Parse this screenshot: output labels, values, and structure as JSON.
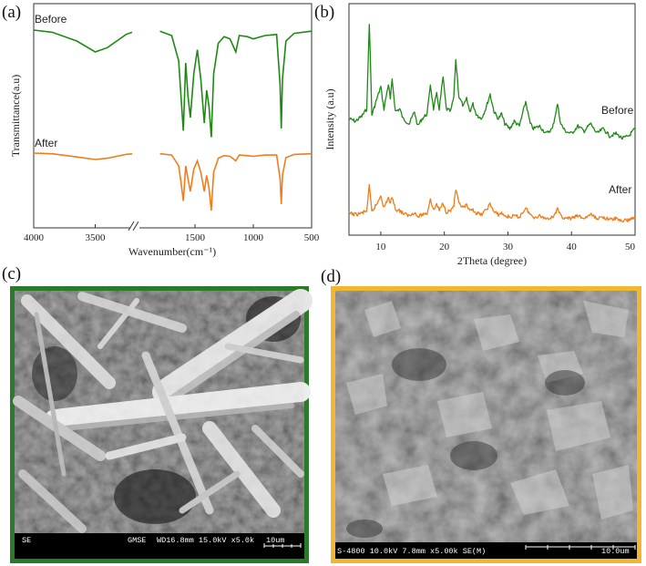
{
  "panels": {
    "a": {
      "label": "(a)"
    },
    "b": {
      "label": "(b)"
    },
    "c": {
      "label": "(c)"
    },
    "d": {
      "label": "(d)"
    }
  },
  "colors": {
    "before": "#1e8a14",
    "after": "#f07d1a",
    "frame_c": "#2a7a2a",
    "frame_d": "#f2b630"
  },
  "chart_data": [
    {
      "type": "line",
      "panel": "a",
      "xlabel": "Wavenumber(cm⁻¹)",
      "ylabel": "Transmittance(a.u)",
      "x_ticks": [
        "4000",
        "3500",
        "1500",
        "1000",
        "500"
      ],
      "axis_break": true,
      "xlim_left": [
        4000,
        3200
      ],
      "xlim_right": [
        2000,
        500
      ],
      "series": [
        {
          "name": "Before",
          "color": "#1e8a14",
          "offset": 0,
          "points": [
            [
              4000,
              100
            ],
            [
              3850,
              98
            ],
            [
              3650,
              90
            ],
            [
              3500,
              80
            ],
            [
              3400,
              84
            ],
            [
              3250,
              96
            ],
            [
              3200,
              98
            ],
            [
              1800,
              99
            ],
            [
              1700,
              95
            ],
            [
              1640,
              72
            ],
            [
              1620,
              40
            ],
            [
              1600,
              8
            ],
            [
              1580,
              70
            ],
            [
              1560,
              40
            ],
            [
              1540,
              20
            ],
            [
              1510,
              60
            ],
            [
              1480,
              82
            ],
            [
              1450,
              55
            ],
            [
              1420,
              15
            ],
            [
              1400,
              45
            ],
            [
              1380,
              30
            ],
            [
              1360,
              2
            ],
            [
              1340,
              60
            ],
            [
              1300,
              88
            ],
            [
              1250,
              94
            ],
            [
              1200,
              92
            ],
            [
              1150,
              80
            ],
            [
              1120,
              95
            ],
            [
              1050,
              94
            ],
            [
              1000,
              92
            ],
            [
              900,
              95
            ],
            [
              800,
              96
            ],
            [
              770,
              50
            ],
            [
              760,
              10
            ],
            [
              750,
              55
            ],
            [
              720,
              90
            ],
            [
              650,
              97
            ],
            [
              500,
              99
            ]
          ]
        },
        {
          "name": "After",
          "color": "#f07d1a",
          "offset": 1,
          "points": [
            [
              4000,
              100
            ],
            [
              3850,
              99
            ],
            [
              3650,
              94
            ],
            [
              3500,
              90
            ],
            [
              3400,
              92
            ],
            [
              3250,
              98
            ],
            [
              3200,
              99
            ],
            [
              1800,
              99
            ],
            [
              1700,
              97
            ],
            [
              1640,
              80
            ],
            [
              1620,
              55
            ],
            [
              1600,
              25
            ],
            [
              1580,
              80
            ],
            [
              1560,
              60
            ],
            [
              1540,
              40
            ],
            [
              1510,
              75
            ],
            [
              1480,
              88
            ],
            [
              1450,
              70
            ],
            [
              1420,
              40
            ],
            [
              1400,
              65
            ],
            [
              1380,
              45
            ],
            [
              1360,
              10
            ],
            [
              1340,
              70
            ],
            [
              1300,
              92
            ],
            [
              1250,
              96
            ],
            [
              1200,
              95
            ],
            [
              1150,
              88
            ],
            [
              1120,
              97
            ],
            [
              1050,
              96
            ],
            [
              1000,
              95
            ],
            [
              900,
              97
            ],
            [
              800,
              97
            ],
            [
              770,
              60
            ],
            [
              760,
              20
            ],
            [
              750,
              65
            ],
            [
              720,
              93
            ],
            [
              650,
              98
            ],
            [
              500,
              99
            ]
          ]
        }
      ]
    },
    {
      "type": "line",
      "panel": "b",
      "xlabel": "2Theta (degree)",
      "ylabel": "Intensity (a.u)",
      "xlim": [
        5,
        50
      ],
      "x_ticks": [
        10,
        20,
        30,
        40,
        50
      ],
      "series": [
        {
          "name": "Before",
          "color": "#1e8a14",
          "offset": 0,
          "points": [
            [
              5,
              22
            ],
            [
              6,
              20
            ],
            [
              7,
              24
            ],
            [
              7.8,
              30
            ],
            [
              8.2,
              100
            ],
            [
              8.6,
              25
            ],
            [
              9.5,
              40
            ],
            [
              10,
              48
            ],
            [
              10.5,
              30
            ],
            [
              11.2,
              50
            ],
            [
              11.5,
              38
            ],
            [
              11.8,
              54
            ],
            [
              12.3,
              28
            ],
            [
              13,
              30
            ],
            [
              13.5,
              22
            ],
            [
              14,
              20
            ],
            [
              14.5,
              18
            ],
            [
              15.3,
              28
            ],
            [
              15.8,
              16
            ],
            [
              16.5,
              22
            ],
            [
              17.3,
              26
            ],
            [
              17.8,
              50
            ],
            [
              18.3,
              30
            ],
            [
              18.8,
              42
            ],
            [
              19.2,
              30
            ],
            [
              19.8,
              56
            ],
            [
              20.3,
              30
            ],
            [
              21,
              28
            ],
            [
              21.5,
              40
            ],
            [
              21.8,
              70
            ],
            [
              22.3,
              40
            ],
            [
              23,
              32
            ],
            [
              23.5,
              38
            ],
            [
              24,
              28
            ],
            [
              24.5,
              34
            ],
            [
              25,
              26
            ],
            [
              25.8,
              22
            ],
            [
              26.5,
              30
            ],
            [
              27.2,
              42
            ],
            [
              27.8,
              28
            ],
            [
              28.5,
              22
            ],
            [
              29,
              26
            ],
            [
              29.5,
              18
            ],
            [
              30.3,
              14
            ],
            [
              31,
              20
            ],
            [
              31.8,
              16
            ],
            [
              32.8,
              36
            ],
            [
              33.5,
              18
            ],
            [
              34,
              14
            ],
            [
              35,
              16
            ],
            [
              36,
              10
            ],
            [
              37,
              14
            ],
            [
              37.8,
              34
            ],
            [
              38.3,
              18
            ],
            [
              39,
              12
            ],
            [
              40,
              10
            ],
            [
              41,
              16
            ],
            [
              42,
              12
            ],
            [
              43,
              18
            ],
            [
              44,
              10
            ],
            [
              45,
              14
            ],
            [
              46,
              8
            ],
            [
              47,
              10
            ],
            [
              48,
              6
            ],
            [
              49,
              8
            ],
            [
              50,
              14
            ]
          ]
        },
        {
          "name": "After",
          "color": "#f07d1a",
          "offset": 1,
          "points": [
            [
              5,
              14
            ],
            [
              6,
              12
            ],
            [
              7,
              14
            ],
            [
              7.8,
              18
            ],
            [
              8.2,
              55
            ],
            [
              8.6,
              16
            ],
            [
              9.5,
              30
            ],
            [
              10,
              42
            ],
            [
              10.5,
              22
            ],
            [
              11.2,
              38
            ],
            [
              11.5,
              28
            ],
            [
              11.8,
              40
            ],
            [
              12.3,
              20
            ],
            [
              13,
              18
            ],
            [
              13.5,
              14
            ],
            [
              14,
              12
            ],
            [
              14.5,
              10
            ],
            [
              15.3,
              16
            ],
            [
              15.8,
              8
            ],
            [
              16.5,
              12
            ],
            [
              17.3,
              14
            ],
            [
              17.8,
              36
            ],
            [
              18.3,
              18
            ],
            [
              18.8,
              28
            ],
            [
              19.2,
              18
            ],
            [
              19.8,
              30
            ],
            [
              20.3,
              16
            ],
            [
              21,
              18
            ],
            [
              21.5,
              26
            ],
            [
              21.8,
              50
            ],
            [
              22.3,
              28
            ],
            [
              23,
              22
            ],
            [
              23.5,
              26
            ],
            [
              24,
              16
            ],
            [
              24.5,
              20
            ],
            [
              25,
              14
            ],
            [
              25.8,
              12
            ],
            [
              26.5,
              18
            ],
            [
              27.2,
              28
            ],
            [
              27.8,
              16
            ],
            [
              28.5,
              12
            ],
            [
              29,
              14
            ],
            [
              29.5,
              10
            ],
            [
              30.3,
              8
            ],
            [
              31,
              10
            ],
            [
              31.8,
              8
            ],
            [
              32.8,
              22
            ],
            [
              33.5,
              12
            ],
            [
              34,
              8
            ],
            [
              35,
              10
            ],
            [
              36,
              6
            ],
            [
              37,
              8
            ],
            [
              37.8,
              20
            ],
            [
              38.3,
              10
            ],
            [
              39,
              6
            ],
            [
              40,
              6
            ],
            [
              41,
              10
            ],
            [
              42,
              6
            ],
            [
              43,
              12
            ],
            [
              44,
              6
            ],
            [
              45,
              8
            ],
            [
              46,
              4
            ],
            [
              47,
              6
            ],
            [
              48,
              2
            ],
            [
              49,
              4
            ],
            [
              50,
              8
            ]
          ]
        }
      ]
    }
  ],
  "sem_c": {
    "mode": "SE",
    "lab": "GMSE",
    "params": "WD16.8mm 15.0kV x5.0k",
    "scale": "10um"
  },
  "sem_d": {
    "params": "S-4800 10.0kV 7.8mm x5.00k SE(M)",
    "scale": "10.0um"
  }
}
